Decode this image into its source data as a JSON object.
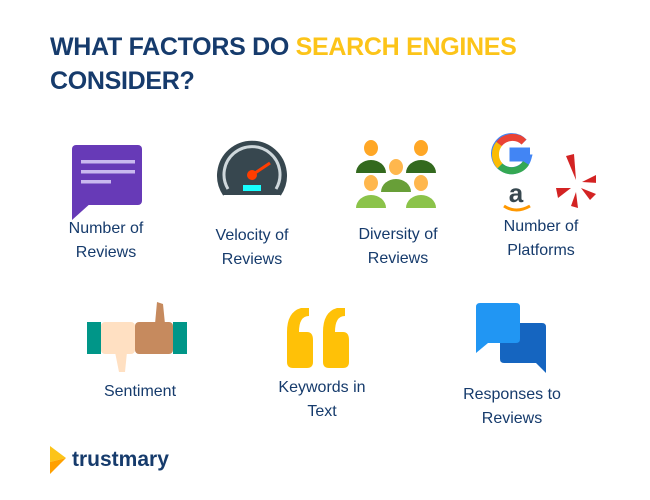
{
  "title": {
    "part1": "WHAT FACTORS DO ",
    "highlight": "SEARCH ENGINES",
    "part2": "CONSIDER?"
  },
  "colors": {
    "navy": "#163b6c",
    "yellow": "#fcc419",
    "purple": "#673ab7",
    "blue": "#2196f3",
    "dark_blue": "#1565c0"
  },
  "factors": [
    {
      "line1": "Number of",
      "line2": "Reviews",
      "icon": "chat-bubble-icon"
    },
    {
      "line1": "Velocity of",
      "line2": "Reviews",
      "icon": "speedometer-icon"
    },
    {
      "line1": "Diversity of",
      "line2": "Reviews",
      "icon": "people-group-icon"
    },
    {
      "line1": "Number of",
      "line2": "Platforms",
      "icon": "platform-logos-icon"
    },
    {
      "line1": "Sentiment",
      "line2": "",
      "icon": "thumbs-up-down-icon"
    },
    {
      "line1": "Keywords in",
      "line2": "Text",
      "icon": "quote-icon"
    },
    {
      "line1": "Responses to",
      "line2": "Reviews",
      "icon": "conversation-icon"
    }
  ],
  "brand": {
    "name": "trustmary"
  }
}
